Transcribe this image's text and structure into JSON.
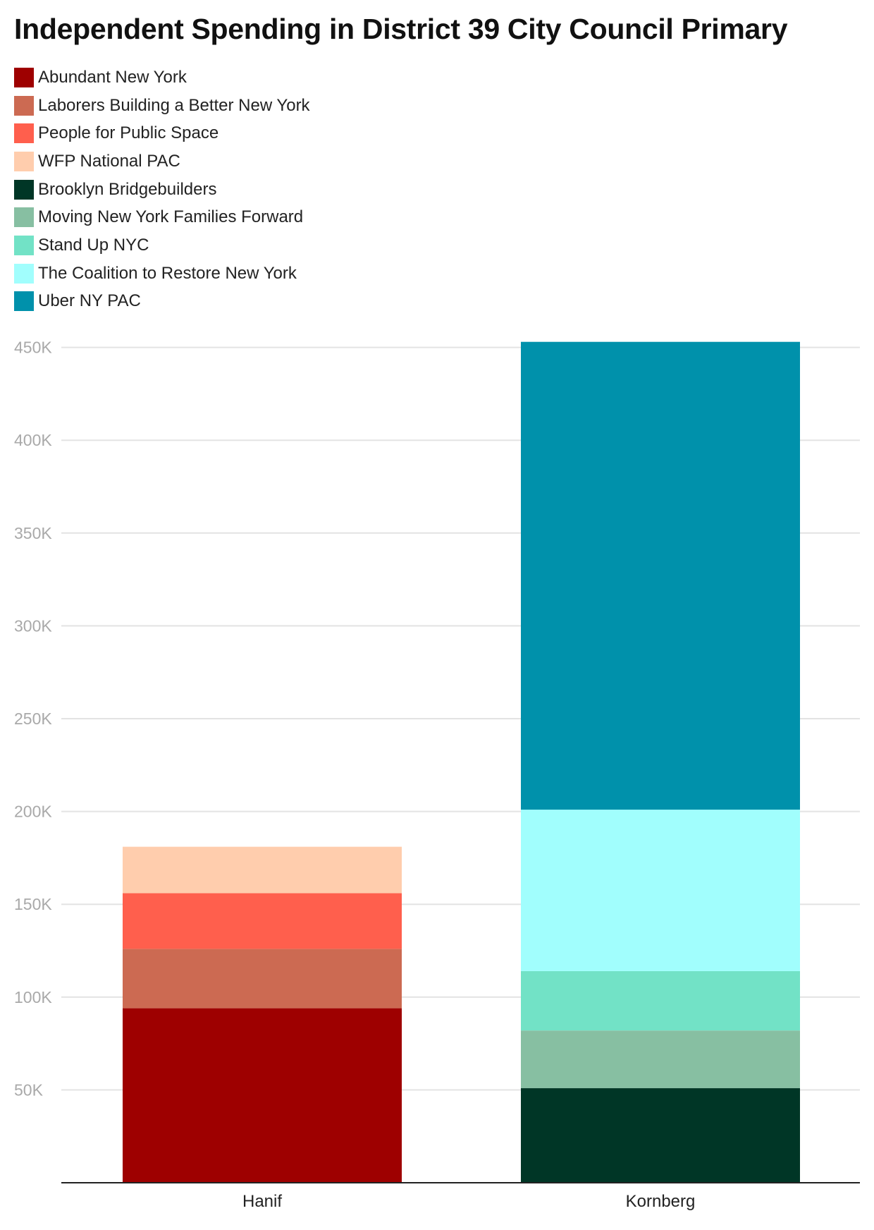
{
  "chart_data": {
    "type": "bar",
    "stacked": true,
    "title": "Independent Spending in District 39 City Council Primary",
    "categories": [
      "Hanif",
      "Kornberg"
    ],
    "series": [
      {
        "name": "Abundant New York",
        "color": "#9e0000",
        "values": [
          94000,
          0
        ]
      },
      {
        "name": "Laborers Building a Better New York",
        "color": "#cc6a52",
        "values": [
          32000,
          0
        ]
      },
      {
        "name": "People for Public Space",
        "color": "#ff5f4d",
        "values": [
          30000,
          0
        ]
      },
      {
        "name": "WFP National PAC",
        "color": "#ffcdad",
        "values": [
          25000,
          0
        ]
      },
      {
        "name": "Brooklyn Bridgebuilders",
        "color": "#003626",
        "values": [
          0,
          51000
        ]
      },
      {
        "name": "Moving New York Families Forward",
        "color": "#87bfa2",
        "values": [
          0,
          31000
        ]
      },
      {
        "name": "Stand Up NYC",
        "color": "#72e2c6",
        "values": [
          0,
          32000
        ]
      },
      {
        "name": "The Coalition to Restore New York",
        "color": "#a1fefd",
        "values": [
          0,
          87000
        ]
      },
      {
        "name": "Uber NY PAC",
        "color": "#0091ab",
        "values": [
          0,
          252000
        ]
      }
    ],
    "yticks": [
      50000,
      100000,
      150000,
      200000,
      250000,
      300000,
      350000,
      400000,
      450000
    ],
    "ytick_labels": [
      "50K",
      "100K",
      "150K",
      "200K",
      "250K",
      "300K",
      "350K",
      "400K",
      "450K"
    ],
    "ylim": [
      0,
      450000
    ],
    "xlabel": "",
    "ylabel": "",
    "grid": true,
    "legend_position": "top-left"
  }
}
